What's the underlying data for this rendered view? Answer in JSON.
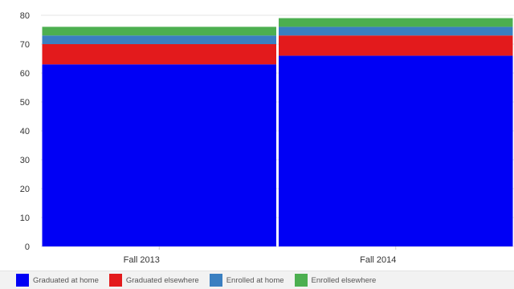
{
  "chart_data": {
    "type": "bar",
    "stacked": true,
    "categories": [
      "Fall 2013",
      "Fall 2014"
    ],
    "series": [
      {
        "name": "Graduated at home",
        "color": "#0000f5",
        "values": [
          63,
          66
        ]
      },
      {
        "name": "Graduated elsewhere",
        "color": "#e31a1c",
        "values": [
          7,
          7
        ]
      },
      {
        "name": "Enrolled at home",
        "color": "#3a7fc1",
        "values": [
          3,
          3
        ]
      },
      {
        "name": "Enrolled elsewhere",
        "color": "#4caf50",
        "values": [
          3,
          3
        ]
      }
    ],
    "ylim": [
      0,
      80
    ],
    "yticks": [
      "0",
      "10",
      "20",
      "30",
      "40",
      "50",
      "60",
      "70",
      "80"
    ],
    "grid": true,
    "legend": "bottom"
  }
}
